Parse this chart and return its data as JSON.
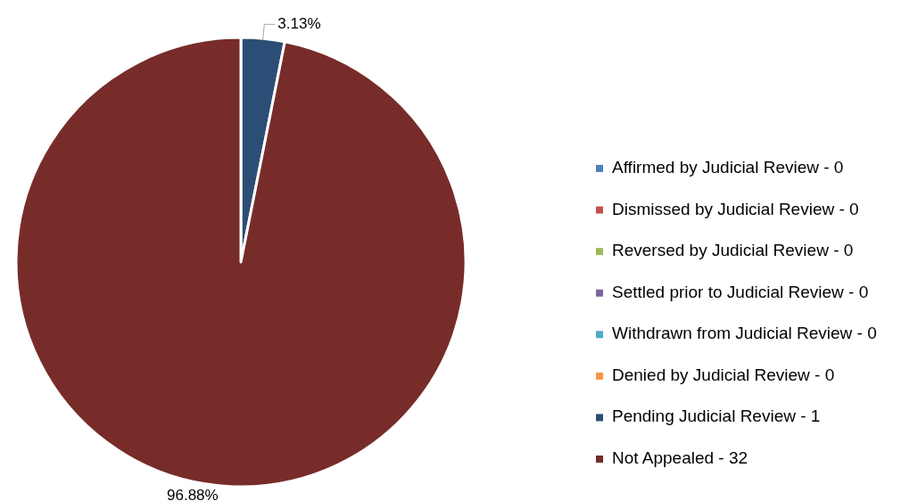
{
  "chart_data": {
    "type": "pie",
    "categories": [
      "Affirmed by Judicial Review - 0",
      "Dismissed by Judicial Review - 0",
      "Reversed by Judicial Review - 0",
      "Settled prior to Judicial Review - 0",
      "Withdrawn from Judicial Review - 0",
      "Denied by Judicial Review - 0",
      "Pending Judicial Review - 1",
      "Not Appealed - 32"
    ],
    "values": [
      0,
      0,
      0,
      0,
      0,
      0,
      3.13,
      96.88
    ],
    "value_labels": [
      null,
      null,
      null,
      null,
      null,
      null,
      "3.13%",
      "96.88%"
    ],
    "colors": [
      "#4f81bd",
      "#c0504d",
      "#9bbb59",
      "#8064a2",
      "#4bacc6",
      "#f79646",
      "#2c4d75",
      "#772c2a"
    ],
    "legend": "right"
  }
}
